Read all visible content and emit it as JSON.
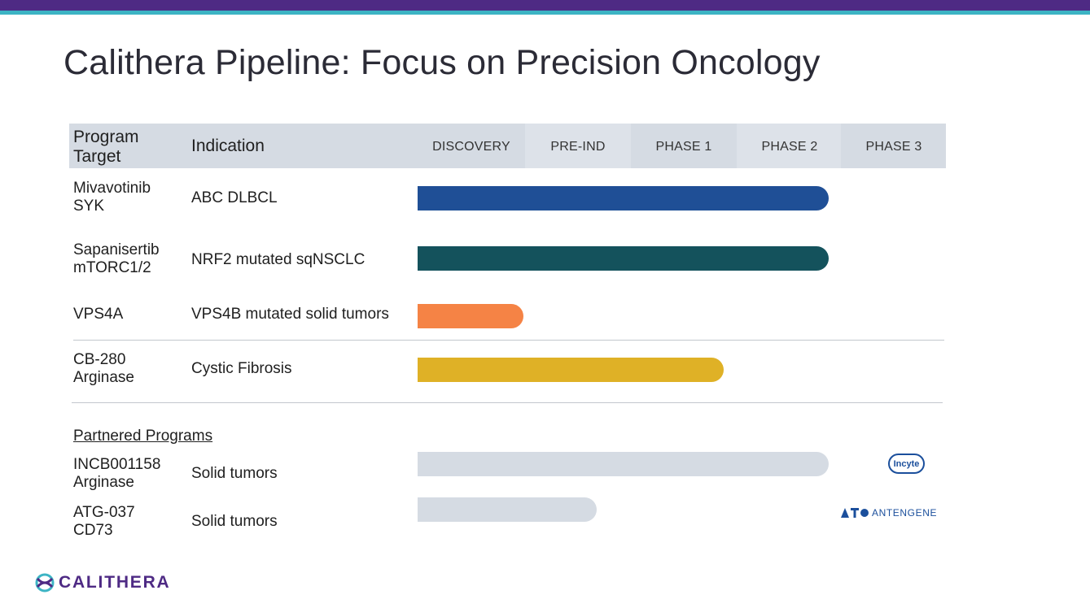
{
  "slide": {
    "title": "Calithera Pipeline: Focus on Precision Oncology",
    "accent_purple": "#4e2a84",
    "accent_teal": "#3cb4c4"
  },
  "table": {
    "header": {
      "program_target": "Program Target",
      "indication": "Indication",
      "phases": [
        "DISCOVERY",
        "PRE-IND",
        "PHASE 1",
        "PHASE 2",
        "PHASE 3"
      ]
    },
    "rows": [
      {
        "target_line1": "Mivavotinib",
        "target_line2": "SYK",
        "indication": "ABC DLBCL",
        "progress_phases": 3.9,
        "color": "#1f4f96"
      },
      {
        "target_line1": "Sapanisertib",
        "target_line2": "mTORC1/2",
        "indication": "NRF2 mutated sqNSCLC",
        "progress_phases": 3.9,
        "color": "#14525c"
      },
      {
        "target_line1": "VPS4A",
        "target_line2": "",
        "indication": "VPS4B mutated solid tumors",
        "progress_phases": 1.0,
        "color": "#f58345"
      },
      {
        "target_line1": "CB-280",
        "target_line2": "Arginase",
        "indication": "Cystic Fibrosis",
        "progress_phases": 2.9,
        "color": "#dfb126"
      }
    ],
    "partnered_label": "Partnered Programs",
    "partnered": [
      {
        "target_line1": "INCB001158",
        "target_line2": "Arginase",
        "indication": "Solid tumors",
        "progress_phases": 3.9,
        "color": "#d5dbe3",
        "partner": "Incyte"
      },
      {
        "target_line1": "ATG-037",
        "target_line2": "CD73",
        "indication": "Solid tumors",
        "progress_phases": 1.7,
        "color": "#d5dbe3",
        "partner": "ANTENGENE"
      }
    ]
  },
  "logos": {
    "incyte": "Incyte",
    "antengene": "ANTENGENE",
    "calithera": "CALITHERA"
  }
}
